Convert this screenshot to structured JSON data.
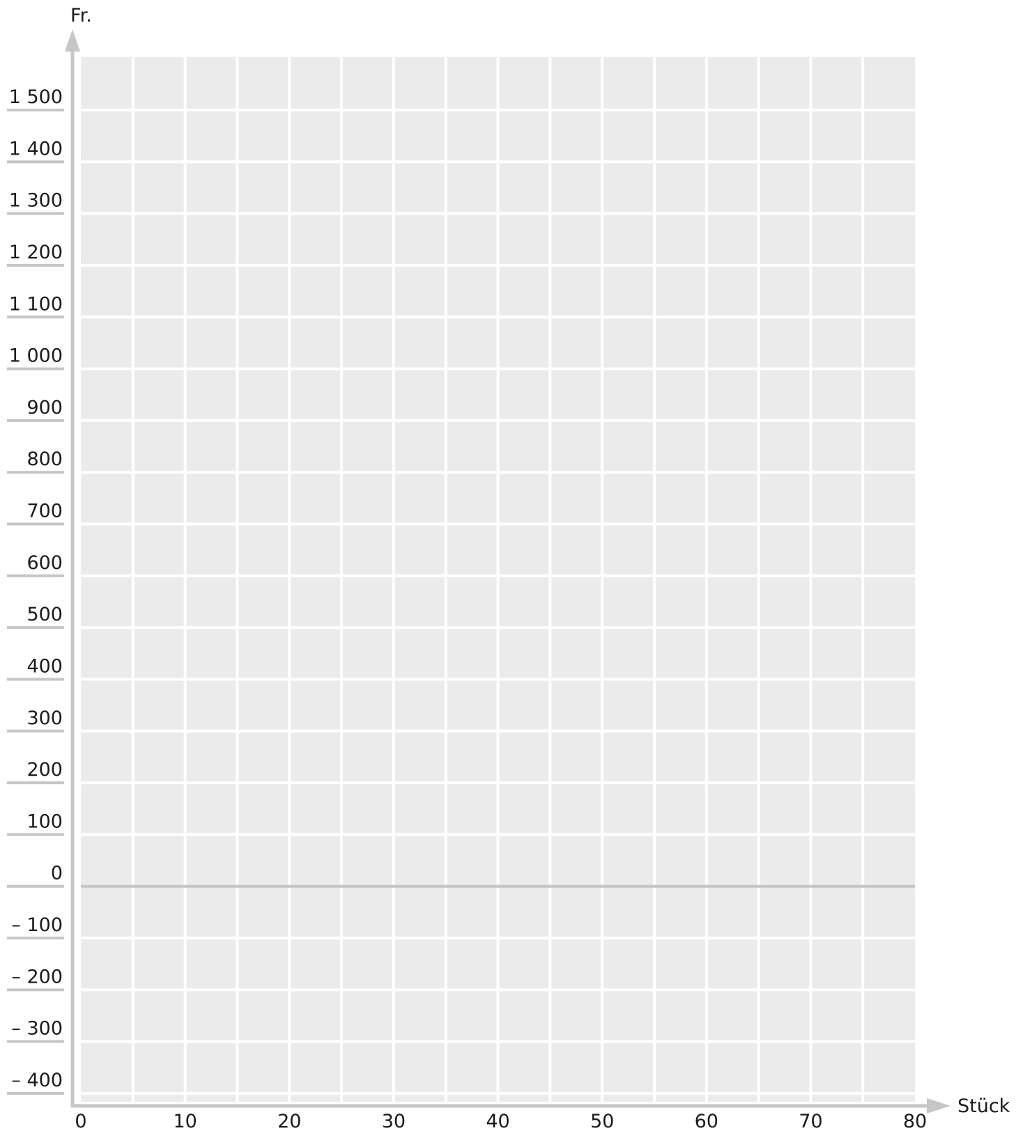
{
  "chart_data": {
    "type": "line",
    "title": "",
    "xlabel": "Stück",
    "ylabel": "Fr.",
    "xlim": [
      0,
      80
    ],
    "ylim": [
      -400,
      1500
    ],
    "x_ticks": [
      0,
      10,
      20,
      30,
      40,
      50,
      60,
      70,
      80
    ],
    "x_tick_labels": [
      "0",
      "10",
      "20",
      "30",
      "40",
      "50",
      "60",
      "70",
      "80"
    ],
    "y_ticks": [
      1500,
      1400,
      1300,
      1200,
      1100,
      1000,
      900,
      800,
      700,
      600,
      500,
      400,
      300,
      200,
      100,
      0,
      -100,
      -200,
      -300,
      -400
    ],
    "y_tick_labels": [
      "1 500",
      "1 400",
      "1 300",
      "1 200",
      "1 100",
      "1 000",
      "900",
      "800",
      "700",
      "600",
      "500",
      "400",
      "300",
      "200",
      "100",
      "0",
      "– 100",
      "– 200",
      "– 300",
      "– 400"
    ],
    "x_minor_step": 5,
    "grid": true,
    "series": [],
    "colors": {
      "grid_background": "#ebebeb",
      "grid_lines": "#ffffff",
      "axis": "#c6c6c6",
      "zero_line": "#c6c6c6"
    }
  }
}
